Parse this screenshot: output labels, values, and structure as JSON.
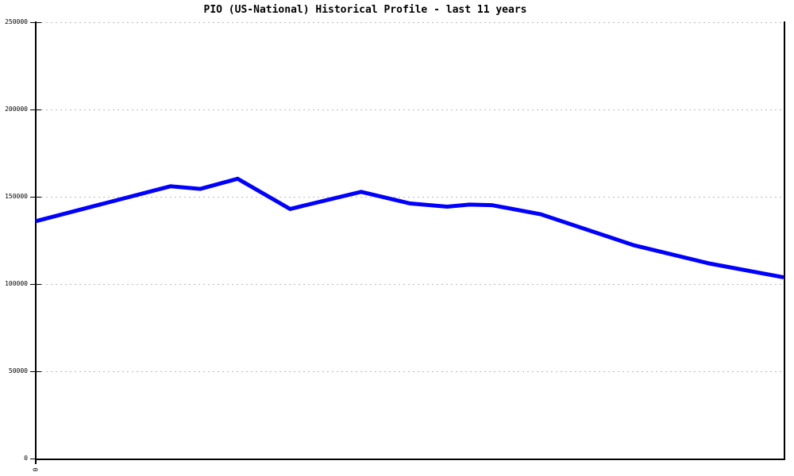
{
  "chart_data": {
    "type": "line",
    "title": "PIO (US-National) Historical Profile - last 11 years",
    "xlabel": "",
    "ylabel": "",
    "x_axis": {
      "range": [
        0,
        10
      ],
      "ticks": [
        {
          "label": "0",
          "value": 0
        }
      ],
      "tick_label_rotation_deg": 90
    },
    "y_axis": {
      "range": [
        0,
        250000
      ],
      "ticks": [
        {
          "label": "0",
          "value": 0
        },
        {
          "label": "50000",
          "value": 50000
        },
        {
          "label": "100000",
          "value": 100000
        },
        {
          "label": "150000",
          "value": 150000
        },
        {
          "label": "200000",
          "value": 200000
        },
        {
          "label": "250000",
          "value": 250000
        }
      ]
    },
    "grid": {
      "horizontal": true,
      "vertical": false,
      "style": "dotted",
      "color": "#b9b9b9"
    },
    "legend": {
      "visible": false
    },
    "axis_color": "#000000",
    "text_color": "#000000",
    "series": [
      {
        "color": "#0000ff",
        "line_width": 5,
        "points": [
          {
            "x": 0.0,
            "y": 136000
          },
          {
            "x": 1.8,
            "y": 156000
          },
          {
            "x": 2.2,
            "y": 154500
          },
          {
            "x": 2.7,
            "y": 160300
          },
          {
            "x": 3.4,
            "y": 143000
          },
          {
            "x": 4.35,
            "y": 152800
          },
          {
            "x": 5.0,
            "y": 146200
          },
          {
            "x": 5.5,
            "y": 144300
          },
          {
            "x": 5.8,
            "y": 145500
          },
          {
            "x": 6.1,
            "y": 145200
          },
          {
            "x": 6.75,
            "y": 140000
          },
          {
            "x": 8.0,
            "y": 122200
          },
          {
            "x": 9.0,
            "y": 111800
          },
          {
            "x": 10.0,
            "y": 103800
          }
        ]
      }
    ]
  }
}
